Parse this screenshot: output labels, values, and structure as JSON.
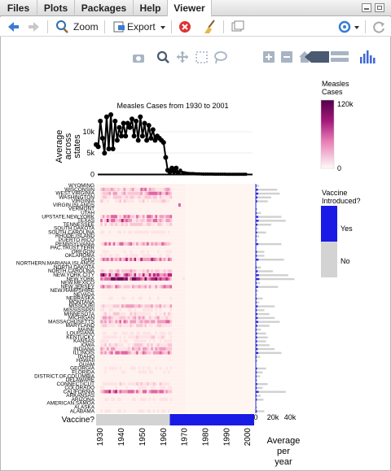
{
  "tabs": [
    {
      "label": "Files"
    },
    {
      "label": "Plots"
    },
    {
      "label": "Packages"
    },
    {
      "label": "Help"
    },
    {
      "label": "Viewer"
    }
  ],
  "toolbar": {
    "zoom_label": "Zoom",
    "export_label": "Export"
  },
  "chart_data": {
    "type": "heatmap",
    "title": "Measles Cases from 1930 to 2001",
    "top_ylabel": "Average across states",
    "top_yticks": [
      "0",
      "5k",
      "10k"
    ],
    "top_series_values": [
      7000,
      6500,
      12500,
      8500,
      5000,
      13500,
      6000,
      14000,
      6000,
      12500,
      8000,
      11000,
      9000,
      12000,
      9000,
      12000,
      11000,
      13000,
      9000,
      12500,
      8000,
      13500,
      9000,
      12000,
      8000,
      11500,
      8500,
      10500,
      8000,
      9000,
      8500,
      8000,
      7500,
      4000,
      1000,
      600,
      1500,
      700,
      1500,
      400,
      1000,
      500,
      400,
      300,
      250,
      200,
      200,
      180,
      150,
      150,
      120,
      100,
      100,
      100,
      100,
      90,
      80,
      80,
      80,
      70,
      70,
      70,
      60,
      60,
      60,
      60,
      50,
      50,
      50,
      50,
      50,
      50
    ],
    "x_ticks": [
      "1930",
      "1940",
      "1950",
      "1960",
      "1970",
      "1980",
      "1990",
      "2000"
    ],
    "states": [
      "WYOMING",
      "WISCONSIN",
      "WEST.VIRGINIA",
      "WASHINGTON",
      "VIRGINIA",
      "VIRGIN.ISLANDS",
      "VERMONT",
      "UTAH",
      "UPSTATE.NEW.YORK",
      "TEXAS",
      "TENNESSEE",
      "SOUTH.DAKOTA",
      "SOUTH.CAROLINA",
      "RHODE.ISLAND",
      "PUERTO.RICO",
      "PENNSYLVANIA",
      "PAC.TRUST.TERR",
      "OREGON",
      "OKLAHOMA",
      "OHIO",
      "NORTHERN.MARIANA.ISLANDS",
      "NORTH.DAKOTA",
      "NORTH.CAROLINA",
      "NEW.YORK.CITY",
      "NEW.YORK",
      "NEW.MEXICO",
      "NEW.JERSEY",
      "NEW.HAMPSHIRE",
      "NEVADA",
      "NEBRASKA",
      "MONTANA",
      "MISSOURI",
      "MISSISSIPPI",
      "MINNESOTA",
      "MICHIGAN",
      "MASSACHUSETTS",
      "MARYLAND",
      "MAINE",
      "LOUISIANA",
      "KENTUCKY",
      "KANSAS",
      "IOWA",
      "INDIANA",
      "ILLINOIS",
      "IDAHO",
      "HAWAII",
      "GUAM",
      "GEORGIA",
      "FLORIDA",
      "DISTRICT.OF.COLUMBIA",
      "DELAWARE",
      "CONNECTICUT",
      "COLORADO",
      "CALIFORNIA",
      "ARKANSAS",
      "ARIZONA",
      "AMERICAN.SAMOA",
      "ALASKA",
      "ALABAMA"
    ],
    "state_labels_shown": [
      "WYOMING",
      "WISCONSIN",
      "WEST.VIRGINIA",
      "WASHINGTON",
      "VIRGINIA",
      "VIRGIN.ISLANDS",
      "VERMONT",
      "UTAH",
      "UPSTATE.NEW.YORK",
      "TEXAS",
      "TENNESSEE",
      "SOUTH.DAKOTA",
      "SOUTH.CAROLINA",
      "RHODE.ISLAND",
      "PUERTO.RICO",
      "PENNSYLVANIA",
      "PAC.TRUST.TERR",
      "OREGON",
      "OKLAHOMA",
      "OHIO",
      "NORTHERN.MARIANA.ISLANDS",
      "NORTH.DAKOTA",
      "NORTH.CAROLINA",
      "NEW.YORK.CITY",
      "NEW.YORK",
      "NEW.MEXICO",
      "NEW.JERSEY",
      "NEW.HAMPSHIRE",
      "NEVADA",
      "NEBRASKA",
      "MONTANA",
      "MISSOURI",
      "MISSISSIPPI",
      "MINNESOTA",
      "MICHIGAN",
      "MASSACHUSETTS",
      "MARYLAND",
      "MAINE",
      "LOUISIANA",
      "KENTUCKY",
      "KANSAS",
      "IOWA",
      "INDIANA",
      "ILLINOIS",
      "IDAHO",
      "HAWAII",
      "GUAM",
      "GEORGIA",
      "FLORIDA",
      "DISTRICT.OF.COLUMBIA",
      "DELAWARE",
      "CONNECTICUT",
      "COLORADO",
      "CALIFORNIA",
      "ARKANSAS",
      "ARIZONA",
      "AMERICAN.SAMOA",
      "ALASKA",
      "ALABAMA"
    ],
    "state_row_avg": [
      4000,
      25000,
      28000,
      18000,
      14000,
      200,
      2000,
      6000,
      30000,
      35000,
      18000,
      3000,
      12000,
      4000,
      2000,
      30000,
      100,
      10000,
      10000,
      33000,
      50,
      6000,
      20000,
      38000,
      45000,
      5000,
      26000,
      3000,
      1500,
      8000,
      4000,
      22000,
      10000,
      16000,
      22000,
      28000,
      16000,
      6000,
      12000,
      14000,
      12000,
      16000,
      22000,
      30000,
      5000,
      2000,
      300,
      12000,
      8000,
      5000,
      2000,
      14000,
      8000,
      35000,
      6000,
      9000,
      100,
      1500,
      10000
    ],
    "right_xticks": [
      "0",
      "20k",
      "40k"
    ],
    "right_xlabel": "Average per year",
    "vaccine_label": "Vaccine?",
    "vaccine_introduced_year": 1963,
    "colorbar": {
      "title": "Measles Cases",
      "ticks": [
        "120k",
        "0"
      ],
      "low": "#fffbf9",
      "high": "#52004a"
    },
    "vaccine_legend": {
      "title": "Vaccine Introduced?",
      "yes": "Yes",
      "no": "No",
      "yes_color": "#1a1ae6",
      "no_color": "#d3d3d3"
    }
  }
}
